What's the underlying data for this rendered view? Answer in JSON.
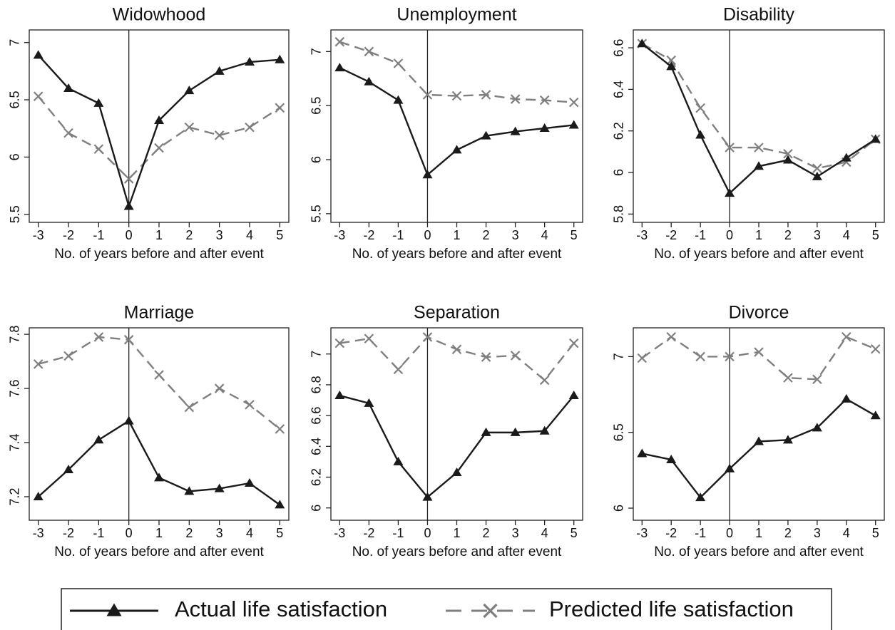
{
  "chart_data": [
    {
      "type": "line",
      "title": "Widowhood",
      "xlabel": "No. of years before and after event",
      "x": [
        -3,
        -2,
        -1,
        0,
        1,
        2,
        3,
        4,
        5
      ],
      "xlim": [
        -3.3,
        5.3
      ],
      "xticks": [
        -3,
        -2,
        -1,
        0,
        1,
        2,
        3,
        4,
        5
      ],
      "ylim": [
        5.43,
        7.11
      ],
      "yticks": [
        5.5,
        6,
        6.5,
        7
      ],
      "vline": 0,
      "series": [
        {
          "values": [
            6.89,
            6.6,
            6.47,
            5.57,
            6.32,
            6.58,
            6.75,
            6.83,
            6.85
          ]
        },
        {
          "values": [
            6.53,
            6.21,
            6.07,
            5.81,
            6.08,
            6.26,
            6.19,
            6.26,
            6.43
          ]
        }
      ]
    },
    {
      "type": "line",
      "title": "Unemployment",
      "xlabel": "No. of years before and after event",
      "x": [
        -3,
        -2,
        -1,
        0,
        1,
        2,
        3,
        4,
        5
      ],
      "xlim": [
        -3.3,
        5.3
      ],
      "xticks": [
        -3,
        -2,
        -1,
        0,
        1,
        2,
        3,
        4,
        5
      ],
      "ylim": [
        5.42,
        7.2
      ],
      "yticks": [
        5.5,
        6,
        6.5,
        7
      ],
      "vline": 0,
      "series": [
        {
          "values": [
            6.85,
            6.72,
            6.55,
            5.86,
            6.09,
            6.22,
            6.26,
            6.29,
            6.32
          ]
        },
        {
          "values": [
            7.09,
            7.0,
            6.89,
            6.6,
            6.59,
            6.6,
            6.56,
            6.55,
            6.53
          ]
        }
      ]
    },
    {
      "type": "line",
      "title": "Disability",
      "xlabel": "No. of years before and after event",
      "x": [
        -3,
        -2,
        -1,
        0,
        1,
        2,
        3,
        4,
        5
      ],
      "xlim": [
        -3.3,
        5.3
      ],
      "xticks": [
        -3,
        -2,
        -1,
        0,
        1,
        2,
        3,
        4,
        5
      ],
      "ylim": [
        5.76,
        6.686
      ],
      "yticks": [
        5.8,
        6,
        6.2,
        6.4,
        6.6
      ],
      "vline": 0,
      "series": [
        {
          "values": [
            6.62,
            6.51,
            6.18,
            5.9,
            6.03,
            6.06,
            5.98,
            6.07,
            6.16
          ]
        },
        {
          "values": [
            6.62,
            6.54,
            6.31,
            6.12,
            6.12,
            6.09,
            6.02,
            6.05,
            6.16
          ]
        }
      ]
    },
    {
      "type": "line",
      "title": "Marriage",
      "xlabel": "No. of years before and after event",
      "x": [
        -3,
        -2,
        -1,
        0,
        1,
        2,
        3,
        4,
        5
      ],
      "xlim": [
        -3.3,
        5.3
      ],
      "xticks": [
        -3,
        -2,
        -1,
        0,
        1,
        2,
        3,
        4,
        5
      ],
      "ylim": [
        7.113,
        7.824
      ],
      "yticks": [
        7.2,
        7.4,
        7.6,
        7.8
      ],
      "vline": 0,
      "series": [
        {
          "values": [
            7.2,
            7.3,
            7.41,
            7.48,
            7.27,
            7.22,
            7.23,
            7.25,
            7.17
          ]
        },
        {
          "values": [
            7.69,
            7.72,
            7.79,
            7.78,
            7.65,
            7.53,
            7.6,
            7.54,
            7.45
          ]
        }
      ]
    },
    {
      "type": "line",
      "title": "Separation",
      "xlabel": "No. of years before and after event",
      "x": [
        -3,
        -2,
        -1,
        0,
        1,
        2,
        3,
        4,
        5
      ],
      "xlim": [
        -3.3,
        5.3
      ],
      "xticks": [
        -3,
        -2,
        -1,
        0,
        1,
        2,
        3,
        4,
        5
      ],
      "ylim": [
        5.92,
        7.17
      ],
      "yticks": [
        6,
        6.2,
        6.4,
        6.6,
        6.8,
        7
      ],
      "vline": 0,
      "series": [
        {
          "values": [
            6.73,
            6.68,
            6.3,
            6.07,
            6.23,
            6.49,
            6.49,
            6.5,
            6.73
          ]
        },
        {
          "values": [
            7.07,
            7.1,
            6.9,
            7.11,
            7.03,
            6.98,
            6.99,
            6.83,
            7.07
          ]
        }
      ]
    },
    {
      "type": "line",
      "title": "Divorce",
      "xlabel": "No. of years before and after event",
      "x": [
        -3,
        -2,
        -1,
        0,
        1,
        2,
        3,
        4,
        5
      ],
      "xlim": [
        -3.3,
        5.3
      ],
      "xticks": [
        -3,
        -2,
        -1,
        0,
        1,
        2,
        3,
        4,
        5
      ],
      "ylim": [
        5.92,
        7.19
      ],
      "yticks": [
        6,
        6.5,
        7
      ],
      "vline": 0,
      "series": [
        {
          "values": [
            6.36,
            6.32,
            6.07,
            6.26,
            6.44,
            6.45,
            6.53,
            6.72,
            6.61
          ]
        },
        {
          "values": [
            6.99,
            7.13,
            7.0,
            7.0,
            7.03,
            6.86,
            6.85,
            7.13,
            7.05
          ]
        }
      ]
    }
  ],
  "legend": [
    {
      "name": "Actual life satisfaction",
      "color": "#1a1a1a",
      "dash": "solid",
      "marker": "triangle"
    },
    {
      "name": "Predicted life satisfaction",
      "color": "#7f7f7f",
      "dash": "dashed",
      "marker": "x"
    }
  ]
}
